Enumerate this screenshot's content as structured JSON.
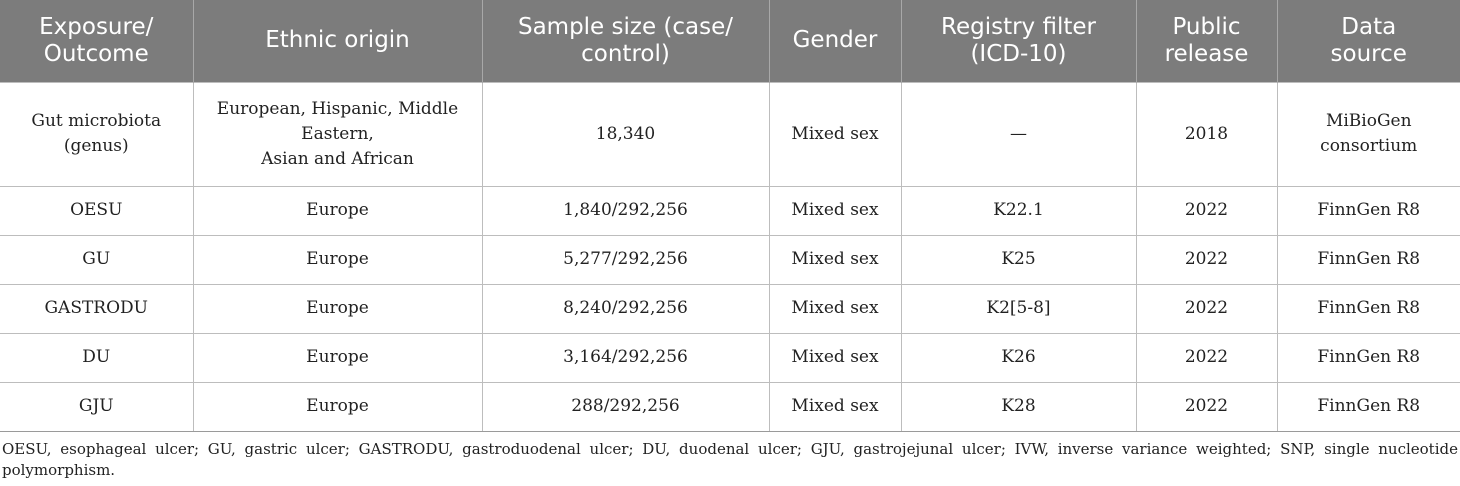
{
  "table": {
    "headers": [
      [
        "Exposure/",
        "Outcome"
      ],
      [
        "Ethnic origin"
      ],
      [
        "Sample size (case/",
        "control)"
      ],
      [
        "Gender"
      ],
      [
        "Registry filter",
        "(ICD-10)"
      ],
      [
        "Public",
        "release"
      ],
      [
        "Data",
        "source"
      ]
    ],
    "rows": [
      {
        "cells": [
          [
            "Gut microbiota",
            "(genus)"
          ],
          [
            "European, Hispanic, Middle",
            "Eastern,",
            "Asian and African"
          ],
          [
            "18,340"
          ],
          [
            "Mixed sex"
          ],
          [
            "—"
          ],
          [
            "2018"
          ],
          [
            "MiBioGen",
            "consortium"
          ]
        ]
      },
      {
        "cells": [
          [
            "OESU"
          ],
          [
            "Europe"
          ],
          [
            "1,840/292,256"
          ],
          [
            "Mixed sex"
          ],
          [
            "K22.1"
          ],
          [
            "2022"
          ],
          [
            "FinnGen R8"
          ]
        ]
      },
      {
        "cells": [
          [
            "GU"
          ],
          [
            "Europe"
          ],
          [
            "5,277/292,256"
          ],
          [
            "Mixed sex"
          ],
          [
            "K25"
          ],
          [
            "2022"
          ],
          [
            "FinnGen R8"
          ]
        ]
      },
      {
        "cells": [
          [
            "GASTRODU"
          ],
          [
            "Europe"
          ],
          [
            "8,240/292,256"
          ],
          [
            "Mixed sex"
          ],
          [
            "K2[5-8]"
          ],
          [
            "2022"
          ],
          [
            "FinnGen R8"
          ]
        ]
      },
      {
        "cells": [
          [
            "DU"
          ],
          [
            "Europe"
          ],
          [
            "3,164/292,256"
          ],
          [
            "Mixed sex"
          ],
          [
            "K26"
          ],
          [
            "2022"
          ],
          [
            "FinnGen R8"
          ]
        ]
      },
      {
        "cells": [
          [
            "GJU"
          ],
          [
            "Europe"
          ],
          [
            "288/292,256"
          ],
          [
            "Mixed sex"
          ],
          [
            "K28"
          ],
          [
            "2022"
          ],
          [
            "FinnGen R8"
          ]
        ]
      }
    ]
  },
  "footnote": "OESU, esophageal ulcer; GU, gastric ulcer; GASTRODU, gastroduodenal ulcer; DU, duodenal ulcer; GJU, gastrojejunal ulcer; IVW, inverse variance weighted; SNP, single nucleotide polymorphism.",
  "colors": {
    "header_bg": "#7c7c7c",
    "header_text": "#ffffff",
    "grid": "#bdbdbd",
    "body_text": "#222222"
  }
}
